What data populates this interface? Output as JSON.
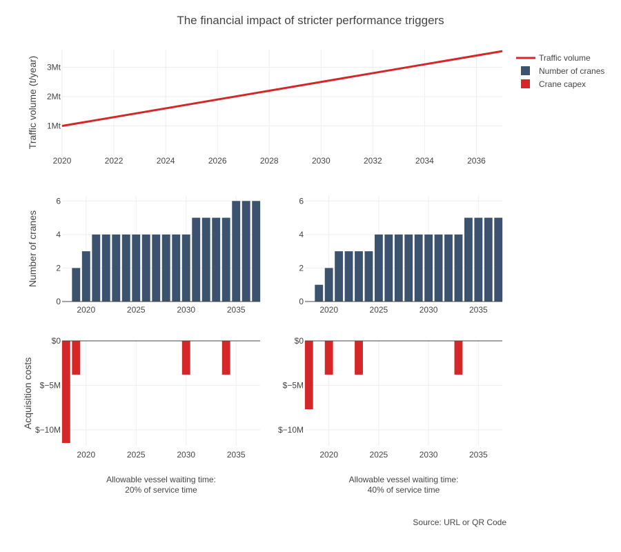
{
  "title": "The financial impact of stricter performance triggers",
  "source": "Source: URL or QR Code",
  "colors": {
    "traffic": "#d62728",
    "cranes": "#3b536e",
    "capex": "#d62728",
    "grid": "#eeeeee",
    "zeroline": "#444444"
  },
  "legend": [
    "Traffic volume",
    "Number of cranes",
    "Crane capex"
  ],
  "chart_data": [
    {
      "id": "traffic",
      "type": "line",
      "series": [
        {
          "name": "Traffic volume",
          "x": [
            2020,
            2037
          ],
          "y": [
            1.0,
            3.55
          ]
        }
      ],
      "xlim": [
        2020,
        2037
      ],
      "xticks": [
        2020,
        2022,
        2024,
        2026,
        2028,
        2030,
        2032,
        2034,
        2036
      ],
      "ylim": [
        0,
        3.6
      ],
      "yticks": [
        1,
        2,
        3
      ],
      "yticklabels": [
        "1Mt",
        "2Mt",
        "3Mt"
      ],
      "ylabel": "Traffic volume (t/year)",
      "grid": true
    },
    {
      "id": "cranes-20",
      "type": "bar",
      "series": [
        {
          "name": "Number of cranes",
          "x": [
            2019,
            2020,
            2021,
            2022,
            2023,
            2024,
            2025,
            2026,
            2027,
            2028,
            2029,
            2030,
            2031,
            2032,
            2033,
            2034,
            2035,
            2036,
            2037
          ],
          "values": [
            2,
            3,
            4,
            4,
            4,
            4,
            4,
            4,
            4,
            4,
            4,
            4,
            5,
            5,
            5,
            5,
            6,
            6,
            6
          ]
        }
      ],
      "xlim": [
        2017.6,
        2037.4
      ],
      "xticks": [
        2020,
        2025,
        2030,
        2035
      ],
      "ylim": [
        0,
        6.3
      ],
      "yticks": [
        0,
        2,
        4,
        6
      ],
      "ylabel": "Number of cranes",
      "grid": true
    },
    {
      "id": "cranes-40",
      "type": "bar",
      "series": [
        {
          "name": "Number of cranes",
          "x": [
            2019,
            2020,
            2021,
            2022,
            2023,
            2024,
            2025,
            2026,
            2027,
            2028,
            2029,
            2030,
            2031,
            2032,
            2033,
            2034,
            2035,
            2036,
            2037
          ],
          "values": [
            1,
            2,
            3,
            3,
            3,
            3,
            4,
            4,
            4,
            4,
            4,
            4,
            4,
            4,
            4,
            5,
            5,
            5,
            5
          ]
        }
      ],
      "xlim": [
        2017.6,
        2037.4
      ],
      "xticks": [
        2020,
        2025,
        2030,
        2035
      ],
      "ylim": [
        0,
        6.3
      ],
      "yticks": [
        0,
        2,
        4,
        6
      ],
      "grid": true
    },
    {
      "id": "capex-20",
      "type": "bar",
      "series": [
        {
          "name": "Crane capex",
          "x": [
            2018,
            2019,
            2030,
            2034
          ],
          "values": [
            -11.5,
            -3.8,
            -3.8,
            -3.8
          ]
        }
      ],
      "xlim": [
        2017.6,
        2037.4
      ],
      "xticks": [
        2020,
        2025,
        2030,
        2035
      ],
      "ylim": [
        -11.8,
        0
      ],
      "yticks": [
        0,
        -5,
        -10
      ],
      "yticklabels": [
        "$0",
        "$−5M",
        "$−10M"
      ],
      "ylabel": "Acquisition costs",
      "caption": [
        "Allowable vessel waiting time:",
        "20% of service time"
      ],
      "grid": true
    },
    {
      "id": "capex-40",
      "type": "bar",
      "series": [
        {
          "name": "Crane capex",
          "x": [
            2018,
            2020,
            2023,
            2033
          ],
          "values": [
            -7.7,
            -3.8,
            -3.8,
            -3.8
          ]
        }
      ],
      "xlim": [
        2017.6,
        2037.4
      ],
      "xticks": [
        2020,
        2025,
        2030,
        2035
      ],
      "ylim": [
        -11.8,
        0
      ],
      "yticks": [
        0,
        -5,
        -10
      ],
      "yticklabels": [
        "$0",
        "$−5M",
        "$−10M"
      ],
      "caption": [
        "Allowable vessel waiting time:",
        "40% of service time"
      ],
      "grid": true
    }
  ]
}
